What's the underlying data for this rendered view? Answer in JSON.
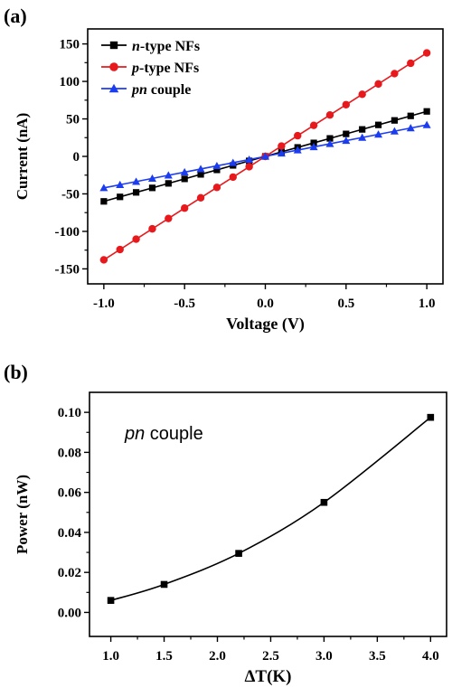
{
  "chart_data": [
    {
      "panel_label": "(a)",
      "type": "line",
      "xlabel": "Voltage (V)",
      "ylabel": "Current (nA)",
      "xlim": [
        -1.1,
        1.1
      ],
      "ylim": [
        -170,
        170
      ],
      "xticks": [
        -1.0,
        -0.5,
        0.0,
        0.5,
        1.0
      ],
      "xtick_labels": [
        "-1.0",
        "-0.5",
        "0.0",
        "0.5",
        "1.0"
      ],
      "yticks": [
        -150,
        -100,
        -50,
        0,
        50,
        100,
        150
      ],
      "ytick_labels": [
        "-150",
        "-100",
        "-50",
        "0",
        "50",
        "100",
        "150"
      ],
      "legend_position": "top-left",
      "grid": false,
      "series": [
        {
          "name_italic": "n",
          "name_rest": "-type NFs",
          "color": "#000000",
          "marker": "square",
          "x_start": -1.0,
          "x_end": 1.0,
          "x_step": 0.1,
          "slope": 60
        },
        {
          "name_italic": "p",
          "name_rest": "-type NFs",
          "color": "#e8191c",
          "marker": "circle",
          "x_start": -1.0,
          "x_end": 1.0,
          "x_step": 0.1,
          "slope": 138
        },
        {
          "name_italic": "pn",
          "name_rest": " couple",
          "color": "#1c3cf0",
          "marker": "triangle",
          "x_start": -1.0,
          "x_end": 1.0,
          "x_step": 0.1,
          "slope": 42
        }
      ]
    },
    {
      "panel_label": "(b)",
      "type": "line",
      "xlabel": "ΔT(K)",
      "ylabel": "Power (nW)",
      "xlim": [
        0.8,
        4.15
      ],
      "ylim": [
        -0.012,
        0.11
      ],
      "xticks": [
        1.0,
        1.5,
        2.0,
        2.5,
        3.0,
        3.5,
        4.0
      ],
      "xtick_labels": [
        "1.0",
        "1.5",
        "2.0",
        "2.5",
        "3.0",
        "3.5",
        "4.0"
      ],
      "yticks": [
        0.0,
        0.02,
        0.04,
        0.06,
        0.08,
        0.1
      ],
      "ytick_labels": [
        "0.00",
        "0.02",
        "0.04",
        "0.06",
        "0.08",
        "0.10"
      ],
      "annotation_italic": "pn",
      "annotation_rest": " couple",
      "grid": false,
      "series": [
        {
          "color": "#000000",
          "marker": "square",
          "x": [
            1.0,
            1.5,
            2.2,
            3.0,
            4.0
          ],
          "y": [
            0.006,
            0.014,
            0.0295,
            0.055,
            0.0975
          ]
        }
      ]
    }
  ]
}
